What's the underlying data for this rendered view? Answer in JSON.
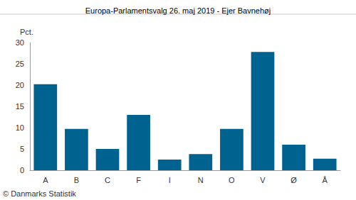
{
  "chart_data": {
    "type": "bar",
    "title": "Europa-Parlamentsvalg 26. maj 2019 - Ejer Bavnehøj",
    "y_label": "Pct.",
    "categories": [
      "A",
      "B",
      "C",
      "F",
      "I",
      "N",
      "O",
      "V",
      "Ø",
      "Å"
    ],
    "values": [
      20.2,
      9.7,
      5.0,
      13.0,
      2.5,
      3.8,
      9.7,
      27.8,
      6.0,
      2.7
    ],
    "color": "#00628f",
    "ylim": [
      0,
      30
    ],
    "yticks": [
      0,
      5,
      10,
      15,
      20,
      25,
      30
    ],
    "grid": false,
    "annotations": [
      "© Danmarks Statistik"
    ]
  }
}
